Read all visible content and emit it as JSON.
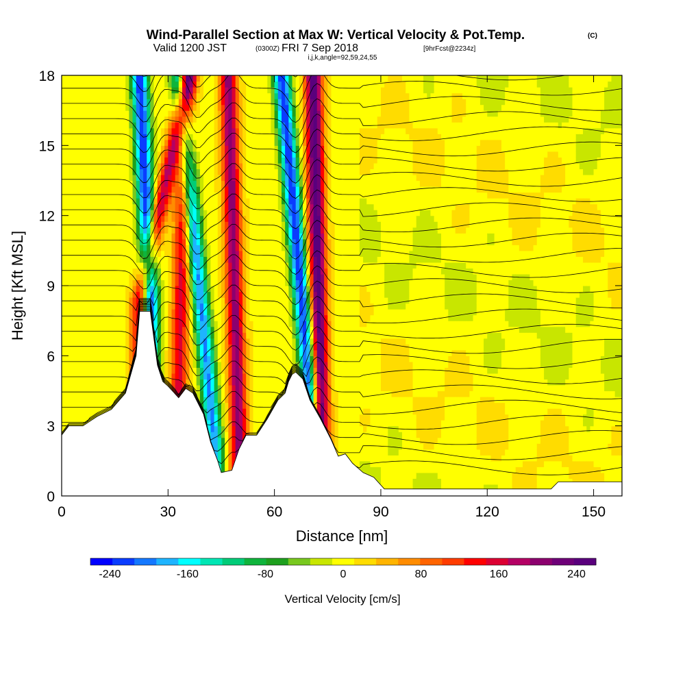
{
  "title": {
    "main": "Wind-Parallel Section at Max W: Vertical Velocity & Pot.Temp.",
    "copyright": "(C)",
    "valid_prefix": "Valid 1200 JST",
    "valid_zulu": "(0300Z)",
    "valid_date": "FRI 7 Sep 2018",
    "forecast": "[9hrFcst@2234z]",
    "indices": "i,j,k,angle=92,59,24,55"
  },
  "chart_data": {
    "type": "heatmap",
    "xlabel": "Distance [nm]",
    "ylabel": "Height [Kft MSL]",
    "xlim": [
      0,
      158
    ],
    "ylim": [
      0,
      18
    ],
    "xticks": [
      0,
      30,
      60,
      90,
      120,
      150
    ],
    "yticks": [
      0,
      3,
      6,
      9,
      12,
      15,
      18
    ],
    "colorbar": {
      "label": "Vertical Velocity [cm/s]",
      "ticks": [
        -240,
        -160,
        -80,
        0,
        80,
        160,
        240
      ],
      "range": [
        -260,
        260
      ],
      "colors": [
        "#0000ff",
        "#0a3cff",
        "#1478ff",
        "#1eb4ff",
        "#00ffff",
        "#00e6b4",
        "#00cc78",
        "#0fb43c",
        "#1ea01e",
        "#78c81e",
        "#c8e600",
        "#ffff00",
        "#ffdc00",
        "#ffb400",
        "#ff8c00",
        "#ff6400",
        "#ff3c00",
        "#ff0000",
        "#dc0032",
        "#b40064",
        "#8c006e",
        "#6e0078",
        "#5a007d"
      ]
    },
    "updraft_bands": [
      {
        "x_bottom": 22,
        "x_top": 36,
        "peak_cm_s": 170
      },
      {
        "x_bottom": 33,
        "x_top": 35,
        "peak_cm_s": 150
      },
      {
        "x_bottom": 50,
        "x_top": 47,
        "peak_cm_s": 200
      },
      {
        "x_bottom": 73,
        "x_top": 71,
        "peak_cm_s": 250
      }
    ],
    "downdraft_bands": [
      {
        "x_bottom": 25,
        "x_top": 22,
        "peak_cm_s": -240
      },
      {
        "x_bottom": 43,
        "x_top": 33,
        "peak_cm_s": -200
      },
      {
        "x_bottom": 70,
        "x_top": 62,
        "peak_cm_s": -240
      }
    ],
    "terrain_kft": [
      [
        0,
        2.6
      ],
      [
        2,
        3.0
      ],
      [
        6,
        3.0
      ],
      [
        10,
        3.4
      ],
      [
        14,
        3.7
      ],
      [
        18,
        4.4
      ],
      [
        21,
        6.0
      ],
      [
        22,
        7.9
      ],
      [
        25,
        7.9
      ],
      [
        27,
        5.6
      ],
      [
        28.5,
        4.9
      ],
      [
        30,
        4.7
      ],
      [
        33,
        4.2
      ],
      [
        35,
        4.6
      ],
      [
        37,
        4.4
      ],
      [
        40,
        3.5
      ],
      [
        42,
        2.3
      ],
      [
        44,
        1.5
      ],
      [
        45,
        1.0
      ],
      [
        48,
        1.1
      ],
      [
        50,
        2.0
      ],
      [
        52,
        2.6
      ],
      [
        55,
        2.6
      ],
      [
        58,
        3.3
      ],
      [
        61,
        4.1
      ],
      [
        63,
        4.4
      ],
      [
        64,
        4.9
      ],
      [
        65,
        5.2
      ],
      [
        66,
        5.3
      ],
      [
        68,
        5.0
      ],
      [
        70,
        4.1
      ],
      [
        73,
        3.3
      ],
      [
        76,
        2.4
      ],
      [
        78,
        1.7
      ],
      [
        80,
        1.8
      ],
      [
        82,
        1.4
      ],
      [
        85,
        1.0
      ],
      [
        88,
        0.8
      ],
      [
        91,
        0.3
      ],
      [
        138,
        0.3
      ],
      [
        140,
        0.6
      ],
      [
        158,
        0.6
      ]
    ],
    "isentrope_count": 28
  }
}
